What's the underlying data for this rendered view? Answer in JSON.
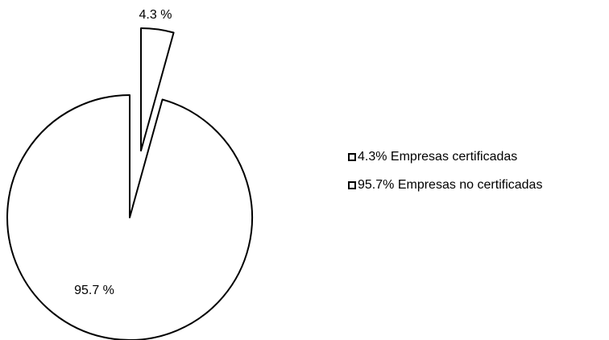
{
  "chart_data": {
    "type": "pie",
    "title": "",
    "slices": [
      {
        "label": "4.3% Empresas certificadas",
        "value": 4.3,
        "data_label": "4.3 %",
        "exploded": true,
        "color": "#ffffff"
      },
      {
        "label": "95.7% Empresas no certificadas",
        "value": 95.7,
        "data_label": "95.7 %",
        "exploded": true,
        "color": "#ffffff"
      }
    ],
    "legend": {
      "position": "right",
      "entries": [
        "4.3% Empresas certificadas",
        "95.7% Empresas no certificadas"
      ]
    },
    "stroke_color": "#000000"
  }
}
